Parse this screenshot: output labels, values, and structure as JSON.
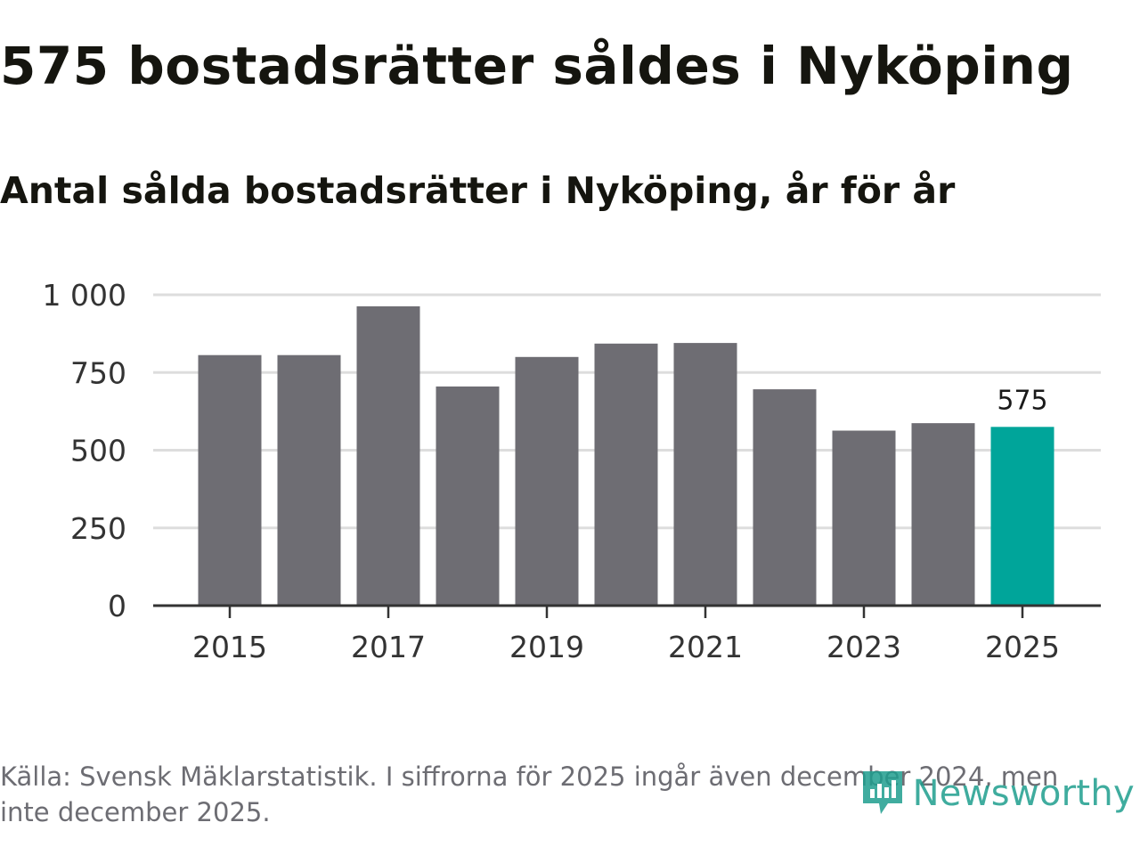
{
  "title": "575 bostadsrätter såldes i Nyköping",
  "subtitle": "Antal sålda bostadsrätter i Nyköping, år för år",
  "source": "Källa: Svensk Mäklarstatistik. I siffrorna för 2025 ingår även december 2024, men inte december 2025.",
  "brand": "Newsworthy",
  "colors": {
    "bar": "#6e6d73",
    "highlight": "#00a59a",
    "grid": "#dddddd",
    "axis": "#333333",
    "brand": "#1e9e8e"
  },
  "chart_data": {
    "type": "bar",
    "title": "575 bostadsrätter såldes i Nyköping",
    "subtitle": "Antal sålda bostadsrätter i Nyköping, år för år",
    "xlabel": "",
    "ylabel": "",
    "ylim": [
      0,
      1000
    ],
    "yticks": [
      0,
      250,
      500,
      750,
      1000
    ],
    "ytick_labels": [
      "0",
      "250",
      "500",
      "750",
      "1 000"
    ],
    "xtick_labels": [
      "2015",
      "2017",
      "2019",
      "2021",
      "2023",
      "2025"
    ],
    "categories": [
      "2015",
      "2016",
      "2017",
      "2018",
      "2019",
      "2020",
      "2021",
      "2022",
      "2023",
      "2024",
      "2025"
    ],
    "values": [
      806,
      806,
      963,
      705,
      800,
      843,
      845,
      696,
      563,
      587,
      575
    ],
    "highlight_category": "2025",
    "data_labels": [
      {
        "category": "2025",
        "text": "575"
      }
    ],
    "grid": true,
    "legend": "none"
  }
}
